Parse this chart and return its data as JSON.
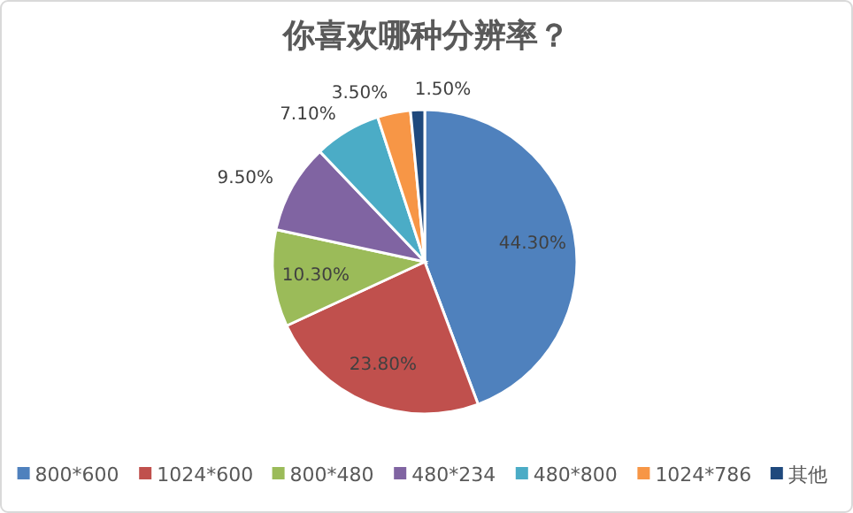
{
  "chart_data": {
    "type": "pie",
    "title": "你喜欢哪种分辨率？",
    "categories": [
      "800*600",
      "1024*600",
      "800*480",
      "480*234",
      "480*800",
      "1024*786",
      "其他"
    ],
    "values": [
      44.3,
      23.8,
      10.3,
      9.5,
      7.1,
      3.5,
      1.5
    ],
    "colors": [
      "#4f81bd",
      "#c0504d",
      "#9bbb59",
      "#8064a2",
      "#4bacc6",
      "#f79646",
      "#1f497d"
    ],
    "value_labels": [
      "44.30%",
      "23.80%",
      "10.30%",
      "9.50%",
      "7.10%",
      "3.50%",
      "1.50%"
    ],
    "legend": "bottom"
  }
}
